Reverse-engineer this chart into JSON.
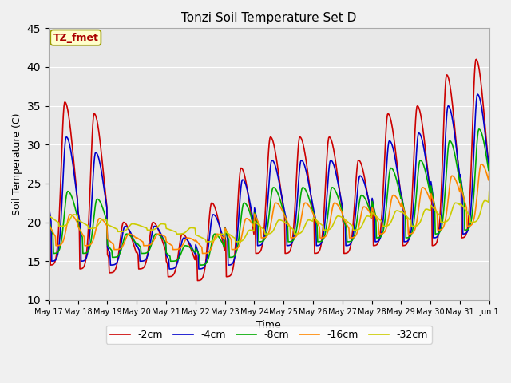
{
  "title": "Tonzi Soil Temperature Set D",
  "xlabel": "Time",
  "ylabel": "Soil Temperature (C)",
  "ylim": [
    10,
    45
  ],
  "legend_labels": [
    "-2cm",
    "-4cm",
    "-8cm",
    "-16cm",
    "-32cm"
  ],
  "legend_colors": [
    "#cc0000",
    "#0000cc",
    "#00aa00",
    "#ff8800",
    "#cccc00"
  ],
  "x_tick_labels": [
    "May 17",
    "May 18",
    "May 19",
    "May 20",
    "May 21",
    "May 22",
    "May 23",
    "May 24",
    "May 25",
    "May 26",
    "May 27",
    "May 28",
    "May 29",
    "May 30",
    "May 31",
    "Jun 1"
  ],
  "annotation_text": "TZ_fmet",
  "annotation_bg": "#ffffcc",
  "annotation_border": "#999900",
  "annotation_color": "#aa0000",
  "fig_bg": "#f0f0f0",
  "plot_bg": "#e8e8e8",
  "grid_color": "#ffffff",
  "line_width": 1.2,
  "figsize": [
    6.4,
    4.8
  ],
  "dpi": 100
}
